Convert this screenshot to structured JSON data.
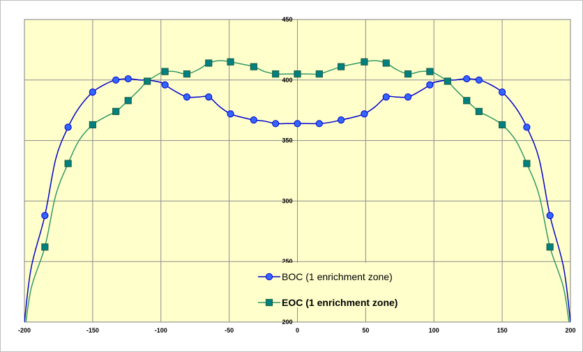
{
  "chart_data": {
    "type": "line",
    "title": "",
    "xlabel": "",
    "ylabel": "",
    "xlim": [
      -200,
      200
    ],
    "ylim": [
      200,
      450
    ],
    "x_ticks": [
      -200,
      -150,
      -100,
      -50,
      0,
      50,
      100,
      150,
      200
    ],
    "y_ticks": [
      200,
      250,
      300,
      350,
      400,
      450
    ],
    "grid": true,
    "plot_background": "#FFFFCC",
    "legend_position": "bottom-center, inside plot",
    "series": [
      {
        "name": "BOC  (1 enrichment zone)",
        "marker": "circle",
        "color": "#0000CC",
        "marker_fill": "#3366FF",
        "legend_bold": false,
        "curve_x": [
          -200,
          -195,
          -185,
          -177,
          -168,
          -160,
          -150,
          -140,
          -133,
          -124,
          -115,
          -110,
          -100,
          -97,
          -90,
          -81,
          -72,
          -65,
          -57,
          -49,
          -40,
          -32,
          -24,
          -16,
          -8,
          0,
          8,
          16,
          24,
          32,
          40,
          49,
          57,
          65,
          72,
          81,
          90,
          97,
          100,
          110,
          115,
          124,
          133,
          140,
          150,
          160,
          168,
          177,
          185,
          195,
          200
        ],
        "curve_y": [
          200,
          245,
          288,
          335,
          361,
          377,
          390,
          397,
          400,
          401,
          400,
          400,
          398,
          396,
          391,
          386,
          386,
          386,
          378,
          372,
          369,
          367,
          366,
          364,
          364,
          364,
          364,
          364,
          365,
          367,
          369,
          372,
          378,
          386,
          386,
          386,
          391,
          396,
          398,
          400,
          400,
          401,
          400,
          397,
          390,
          377,
          361,
          335,
          288,
          245,
          200
        ],
        "markers_x": [
          -185,
          -168,
          -150,
          -133,
          -124,
          -97,
          -81,
          -65,
          -49,
          -32,
          -16,
          0,
          16,
          32,
          49,
          65,
          81,
          97,
          124,
          133,
          150,
          168,
          185
        ],
        "markers_y": [
          288,
          361,
          390,
          400,
          401,
          396,
          386,
          386,
          372,
          367,
          364,
          364,
          364,
          367,
          372,
          386,
          386,
          396,
          401,
          400,
          390,
          361,
          288
        ]
      },
      {
        "name": "EOC  (1 enrichment zone)",
        "marker": "square",
        "color": "#339966",
        "marker_fill": "#008080",
        "legend_bold": true,
        "curve_x": [
          -200,
          -195,
          -185,
          -177,
          -168,
          -160,
          -150,
          -140,
          -133,
          -124,
          -115,
          -110,
          -100,
          -97,
          -90,
          -81,
          -72,
          -65,
          -57,
          -49,
          -40,
          -32,
          -24,
          -16,
          -8,
          0,
          8,
          16,
          24,
          32,
          40,
          49,
          57,
          65,
          72,
          81,
          90,
          97,
          100,
          110,
          115,
          124,
          133,
          140,
          150,
          160,
          168,
          177,
          185,
          195,
          200
        ],
        "curve_y": [
          190,
          228,
          262,
          305,
          331,
          350,
          363,
          370,
          374,
          383,
          393,
          399,
          406,
          407,
          407,
          405,
          409,
          414,
          416,
          415,
          413,
          411,
          407,
          405,
          405,
          405,
          405,
          405,
          408,
          411,
          413,
          415,
          416,
          414,
          409,
          405,
          407,
          407,
          406,
          399,
          393,
          383,
          374,
          370,
          363,
          350,
          331,
          305,
          262,
          228,
          190
        ],
        "markers_x": [
          -185,
          -168,
          -150,
          -133,
          -124,
          -110,
          -97,
          -81,
          -65,
          -49,
          -32,
          -16,
          0,
          16,
          32,
          49,
          65,
          81,
          97,
          110,
          124,
          133,
          150,
          168,
          185
        ],
        "markers_y": [
          262,
          331,
          363,
          374,
          383,
          399,
          407,
          405,
          414,
          415,
          411,
          405,
          405,
          405,
          411,
          415,
          414,
          405,
          407,
          399,
          383,
          374,
          363,
          331,
          262
        ]
      }
    ]
  }
}
